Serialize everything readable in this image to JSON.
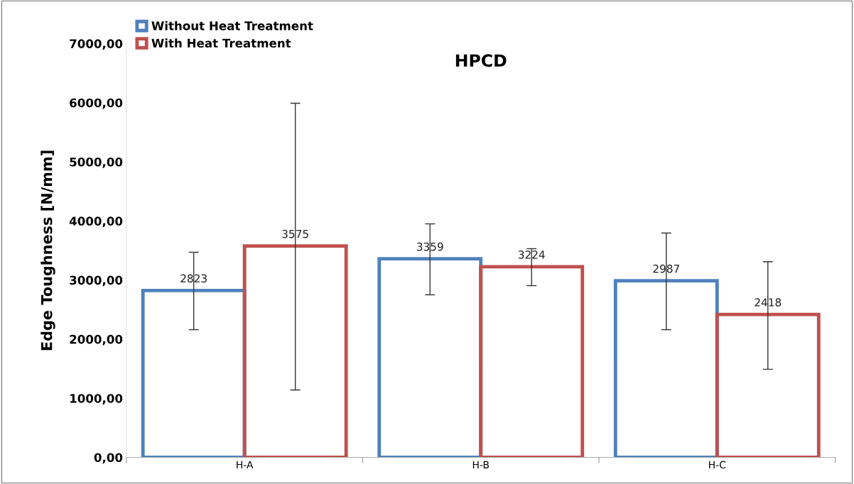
{
  "chart_data": {
    "type": "bar",
    "title": "HPCD",
    "ylabel": "Edge Toughness [N/mm]",
    "categories": [
      "H-A",
      "H-B",
      "H-C"
    ],
    "series": [
      {
        "name": "Without Heat Treatment",
        "color": "#4f81bd",
        "values": [
          2823,
          3359,
          2987
        ],
        "errors": [
          [
            2160,
            3470
          ],
          [
            2750,
            3950
          ],
          [
            2160,
            3795
          ]
        ]
      },
      {
        "name": "With Heat Treatment",
        "color": "#c0504d",
        "values": [
          3575,
          3224,
          2418
        ],
        "errors": [
          [
            1140,
            5990
          ],
          [
            2905,
            3530
          ],
          [
            1490,
            3310
          ]
        ]
      }
    ],
    "ylim": [
      0,
      7000
    ],
    "yticks": [
      {
        "value": 0,
        "label": "0,00"
      },
      {
        "value": 1000,
        "label": "1000,00"
      },
      {
        "value": 2000,
        "label": "2000,00"
      },
      {
        "value": 3000,
        "label": "3000,00"
      },
      {
        "value": 4000,
        "label": "4000,00"
      },
      {
        "value": 5000,
        "label": "5000,00"
      },
      {
        "value": 6000,
        "label": "6000,00"
      },
      {
        "value": 7000,
        "label": "7000,00"
      }
    ],
    "data_labels": true,
    "legend": "top left",
    "grid": false
  }
}
